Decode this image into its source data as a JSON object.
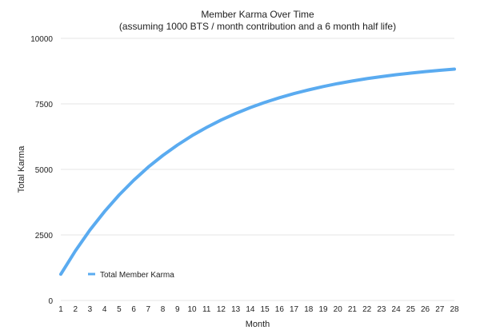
{
  "chart_data": {
    "type": "line",
    "title": "Member Karma Over Time",
    "subtitle": "(assuming 1000 BTS / month contribution and a 6 month half life)",
    "xlabel": "Month",
    "ylabel": "Total Karma",
    "x": [
      1,
      2,
      3,
      4,
      5,
      6,
      7,
      8,
      9,
      10,
      11,
      12,
      13,
      14,
      15,
      16,
      17,
      18,
      19,
      20,
      21,
      22,
      23,
      24,
      25,
      26,
      27,
      28
    ],
    "xticks": [
      "1",
      "2",
      "3",
      "4",
      "5",
      "6",
      "7",
      "8",
      "9",
      "10",
      "11",
      "12",
      "13",
      "14",
      "15",
      "16",
      "17",
      "18",
      "19",
      "20",
      "21",
      "22",
      "23",
      "24",
      "25",
      "26",
      "27",
      "28"
    ],
    "ylim": [
      0,
      10000
    ],
    "yticks": [
      "0",
      "2500",
      "5000",
      "7500",
      "10000"
    ],
    "grid": "horizontal",
    "legend_position": "bottom-left",
    "series": [
      {
        "name": "Total Member Karma",
        "color": "#5aabf0",
        "values": [
          1000,
          1891,
          2685,
          3393,
          4024,
          4586,
          5087,
          5533,
          5931,
          6286,
          6602,
          6884,
          7135,
          7359,
          7558,
          7736,
          7894,
          8035,
          8161,
          8273,
          8373,
          8462,
          8541,
          8612,
          8675,
          8731,
          8781,
          8826
        ]
      }
    ]
  }
}
